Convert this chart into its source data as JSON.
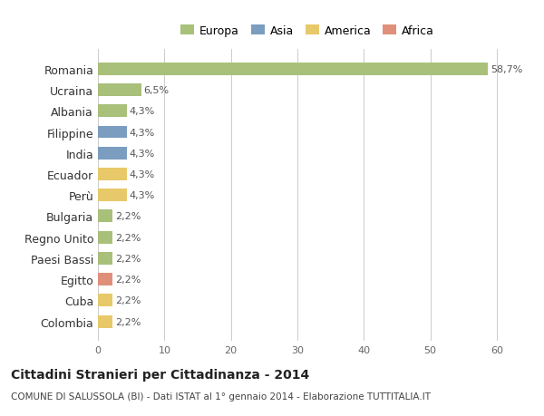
{
  "categories": [
    "Romania",
    "Ucraina",
    "Albania",
    "Filippine",
    "India",
    "Ecuador",
    "Perù",
    "Bulgaria",
    "Regno Unito",
    "Paesi Bassi",
    "Egitto",
    "Cuba",
    "Colombia"
  ],
  "values": [
    58.7,
    6.5,
    4.3,
    4.3,
    4.3,
    4.3,
    4.3,
    2.2,
    2.2,
    2.2,
    2.2,
    2.2,
    2.2
  ],
  "labels": [
    "58,7%",
    "6,5%",
    "4,3%",
    "4,3%",
    "4,3%",
    "4,3%",
    "4,3%",
    "2,2%",
    "2,2%",
    "2,2%",
    "2,2%",
    "2,2%",
    "2,2%"
  ],
  "colors": [
    "#a8c07a",
    "#a8c07a",
    "#a8c07a",
    "#7b9dc0",
    "#7b9dc0",
    "#e8c96a",
    "#e8c96a",
    "#a8c07a",
    "#a8c07a",
    "#a8c07a",
    "#e0907a",
    "#e8c96a",
    "#e8c96a"
  ],
  "legend": {
    "Europa": "#a8c07a",
    "Asia": "#7b9dc0",
    "America": "#e8c96a",
    "Africa": "#e0907a"
  },
  "xlim": [
    0,
    63
  ],
  "xticks": [
    0,
    10,
    20,
    30,
    40,
    50,
    60
  ],
  "title": "Cittadini Stranieri per Cittadinanza - 2014",
  "subtitle": "COMUNE DI SALUSSOLA (BI) - Dati ISTAT al 1° gennaio 2014 - Elaborazione TUTTITALIA.IT",
  "background_color": "#ffffff",
  "grid_color": "#cccccc",
  "bar_height": 0.6
}
